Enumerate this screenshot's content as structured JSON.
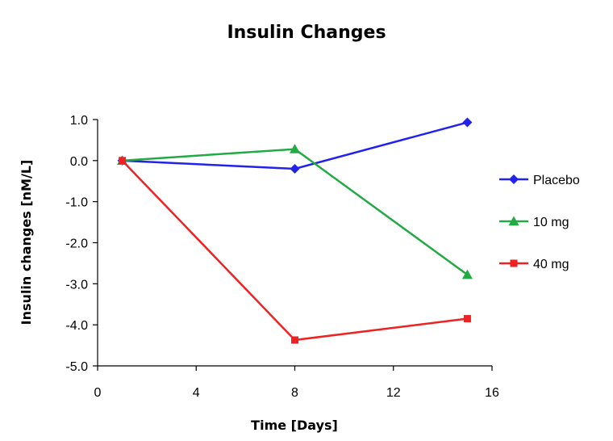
{
  "chart_data": {
    "type": "line",
    "title": "Insulin  Changes",
    "xlabel": "Time [Days]",
    "ylabel": "Insulin changes [nM/L]",
    "xlim": [
      0,
      16
    ],
    "ylim": [
      -5.0,
      1.0
    ],
    "x_ticks": [
      0,
      4,
      8,
      12,
      16
    ],
    "y_ticks": [
      1.0,
      0.0,
      -1.0,
      -2.0,
      -3.0,
      -4.0,
      -5.0
    ],
    "x_tick_labels": [
      "0",
      "4",
      "8",
      "12",
      "16"
    ],
    "y_tick_labels": [
      "1.0",
      "0.0",
      "-1.0",
      "-2.0",
      "-3.0",
      "-4.0",
      "-5.0"
    ],
    "grid": false,
    "legend_position": "right",
    "x": [
      1,
      8,
      15
    ],
    "series": [
      {
        "name": "Placebo",
        "values": [
          0.0,
          -0.2,
          0.93
        ],
        "color": "#2222ee",
        "marker": "diamond"
      },
      {
        "name": "10 mg",
        "values": [
          0.0,
          0.28,
          -2.78
        ],
        "color": "#22aa44",
        "marker": "triangle"
      },
      {
        "name": "40 mg",
        "values": [
          0.0,
          -4.37,
          -3.85
        ],
        "color": "#ee2222",
        "marker": "square"
      }
    ]
  }
}
